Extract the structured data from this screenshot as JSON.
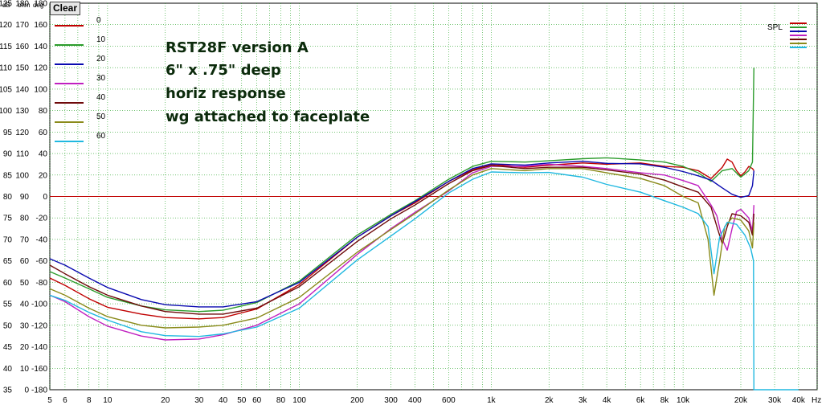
{
  "toolbar": {
    "clear_label": "Clear"
  },
  "axis_headers": {
    "db": "dB",
    "ohm": "ohm",
    "deg": "deg",
    "x_unit": "Hz",
    "spl": "SPL"
  },
  "annotation_lines": [
    "RST28F version A",
    "6\" x .75\" deep",
    "horiz response",
    "wg attached to faceplate"
  ],
  "colors": {
    "plot_bg": "#ffffff",
    "grid": "#20a020",
    "ref_line": "#c00000"
  },
  "chart_data": {
    "type": "line",
    "x_scale": "log",
    "xlim": [
      5,
      50000
    ],
    "ylim": [
      35,
      125
    ],
    "x_ticks": [
      5,
      6,
      8,
      10,
      20,
      30,
      40,
      50,
      60,
      80,
      100,
      200,
      300,
      400,
      600,
      1000,
      2000,
      3000,
      4000,
      6000,
      8000,
      10000,
      20000,
      30000,
      40000
    ],
    "x_tick_labels": [
      "5",
      "6",
      "8",
      "10",
      "20",
      "30",
      "40",
      "50",
      "60",
      "80",
      "100",
      "200",
      "300",
      "400",
      "600",
      "1k",
      "2k",
      "3k",
      "4k",
      "6k",
      "8k",
      "10k",
      "20k",
      "30k",
      "40k"
    ],
    "y_tick_db": [
      "125",
      "120",
      "115",
      "110",
      "105",
      "100",
      "95",
      "90",
      "85",
      "80",
      "75",
      "70",
      "65",
      "60",
      "55",
      "50",
      "45",
      "40",
      "35"
    ],
    "y_tick_ohm": [
      "180",
      "170",
      "160",
      "150",
      "140",
      "130",
      "120",
      "110",
      "100",
      "90",
      "80",
      "70",
      "60",
      "50",
      "40",
      "30",
      "20",
      "10",
      "0"
    ],
    "y_tick_deg": [
      "180",
      "160",
      "140",
      "120",
      "100",
      "80",
      "60",
      "40",
      "20",
      "0",
      "-20",
      "-40",
      "-60",
      "-80",
      "-100",
      "-120",
      "-140",
      "-160",
      "-180"
    ],
    "reference_line_db": 80,
    "grid": true,
    "legend_position": "top-left",
    "series": [
      {
        "name": "0",
        "color": "#c00000",
        "points": [
          [
            5,
            61
          ],
          [
            6,
            59.3
          ],
          [
            8,
            56.2
          ],
          [
            10,
            54.2
          ],
          [
            15,
            52.6
          ],
          [
            20,
            51.8
          ],
          [
            30,
            51.5
          ],
          [
            40,
            51.8
          ],
          [
            60,
            53.8
          ],
          [
            100,
            59.5
          ],
          [
            200,
            70.5
          ],
          [
            300,
            75.5
          ],
          [
            400,
            78.5
          ],
          [
            600,
            83.5
          ],
          [
            800,
            86.2
          ],
          [
            1000,
            87.5
          ],
          [
            1500,
            86.8
          ],
          [
            2000,
            87.3
          ],
          [
            3000,
            87.8
          ],
          [
            4000,
            87.5
          ],
          [
            6000,
            87.8
          ],
          [
            8000,
            87.0
          ],
          [
            10000,
            86.8
          ],
          [
            12000,
            86.0
          ],
          [
            14000,
            84.2
          ],
          [
            16000,
            86.8
          ],
          [
            17000,
            88.7
          ],
          [
            18000,
            88.0
          ],
          [
            19000,
            86.0
          ],
          [
            20000,
            84.8
          ],
          [
            21000,
            85.7
          ],
          [
            22000,
            87.0
          ],
          [
            23000,
            86.5
          ],
          [
            23400,
            86.0
          ]
        ]
      },
      {
        "name": "10",
        "color": "#2c9c2c",
        "points": [
          [
            5,
            62.5
          ],
          [
            6,
            61.0
          ],
          [
            8,
            58.5
          ],
          [
            10,
            56.5
          ],
          [
            15,
            54.5
          ],
          [
            20,
            53.6
          ],
          [
            30,
            53.2
          ],
          [
            40,
            53.5
          ],
          [
            60,
            55.3
          ],
          [
            100,
            60.3
          ],
          [
            200,
            71.0
          ],
          [
            300,
            75.8
          ],
          [
            400,
            79.0
          ],
          [
            600,
            84.0
          ],
          [
            800,
            87.0
          ],
          [
            1000,
            88.2
          ],
          [
            1500,
            88.0
          ],
          [
            2000,
            88.3
          ],
          [
            3000,
            88.8
          ],
          [
            4000,
            89.0
          ],
          [
            6000,
            88.5
          ],
          [
            8000,
            88.0
          ],
          [
            10000,
            87.0
          ],
          [
            12000,
            85.5
          ],
          [
            14000,
            83.5
          ],
          [
            16000,
            86.0
          ],
          [
            18000,
            86.5
          ],
          [
            20000,
            84.5
          ],
          [
            22000,
            86.0
          ],
          [
            23000,
            88.0
          ],
          [
            23400,
            110.0
          ]
        ]
      },
      {
        "name": "20",
        "color": "#0a0ab0",
        "points": [
          [
            5,
            65.5
          ],
          [
            6,
            64.0
          ],
          [
            8,
            61.0
          ],
          [
            10,
            58.8
          ],
          [
            15,
            56.0
          ],
          [
            20,
            54.8
          ],
          [
            30,
            54.3
          ],
          [
            40,
            54.3
          ],
          [
            60,
            55.5
          ],
          [
            100,
            60.0
          ],
          [
            200,
            70.5
          ],
          [
            300,
            75.5
          ],
          [
            400,
            78.8
          ],
          [
            600,
            83.5
          ],
          [
            800,
            86.5
          ],
          [
            1000,
            87.6
          ],
          [
            1500,
            87.3
          ],
          [
            2000,
            87.8
          ],
          [
            3000,
            88.2
          ],
          [
            4000,
            87.7
          ],
          [
            6000,
            87.6
          ],
          [
            8000,
            86.8
          ],
          [
            10000,
            85.8
          ],
          [
            12000,
            84.8
          ],
          [
            14000,
            83.8
          ],
          [
            16000,
            82.0
          ],
          [
            18000,
            80.5
          ],
          [
            20000,
            79.8
          ],
          [
            22000,
            80.2
          ],
          [
            23000,
            82.5
          ],
          [
            23400,
            86.0
          ]
        ]
      },
      {
        "name": "30",
        "color": "#c020c0",
        "points": [
          [
            5,
            57.0
          ],
          [
            6,
            55.5
          ],
          [
            8,
            52.0
          ],
          [
            10,
            49.8
          ],
          [
            15,
            47.5
          ],
          [
            20,
            46.6
          ],
          [
            30,
            46.8
          ],
          [
            40,
            47.8
          ],
          [
            60,
            50.0
          ],
          [
            100,
            55.0
          ],
          [
            200,
            66.5
          ],
          [
            300,
            72.5
          ],
          [
            400,
            76.3
          ],
          [
            600,
            81.3
          ],
          [
            800,
            85.5
          ],
          [
            1000,
            87.0
          ],
          [
            1500,
            87.0
          ],
          [
            2000,
            87.5
          ],
          [
            3000,
            87.0
          ],
          [
            4000,
            86.5
          ],
          [
            6000,
            85.5
          ],
          [
            8000,
            85.0
          ],
          [
            10000,
            83.7
          ],
          [
            12000,
            82.5
          ],
          [
            14000,
            78.0
          ],
          [
            15000,
            75.5
          ],
          [
            16000,
            70.0
          ],
          [
            17000,
            67.5
          ],
          [
            18000,
            72.5
          ],
          [
            19000,
            76.5
          ],
          [
            20000,
            77.0
          ],
          [
            22000,
            75.0
          ],
          [
            23000,
            72.0
          ],
          [
            23400,
            78.0
          ]
        ]
      },
      {
        "name": "40",
        "color": "#6e0a0a",
        "points": [
          [
            5,
            64.0
          ],
          [
            6,
            62.0
          ],
          [
            8,
            59.0
          ],
          [
            10,
            57.0
          ],
          [
            15,
            54.5
          ],
          [
            20,
            53.2
          ],
          [
            30,
            52.6
          ],
          [
            40,
            52.6
          ],
          [
            60,
            54.0
          ],
          [
            100,
            59.0
          ],
          [
            200,
            69.5
          ],
          [
            300,
            74.8
          ],
          [
            400,
            78.0
          ],
          [
            600,
            83.0
          ],
          [
            800,
            86.0
          ],
          [
            1000,
            87.2
          ],
          [
            1500,
            86.5
          ],
          [
            2000,
            86.8
          ],
          [
            3000,
            86.8
          ],
          [
            4000,
            86.2
          ],
          [
            6000,
            85.2
          ],
          [
            8000,
            83.8
          ],
          [
            10000,
            82.2
          ],
          [
            12000,
            81.0
          ],
          [
            14000,
            77.5
          ],
          [
            15000,
            73.0
          ],
          [
            16000,
            69.0
          ],
          [
            17000,
            73.0
          ],
          [
            18000,
            76.0
          ],
          [
            20000,
            75.5
          ],
          [
            22000,
            74.0
          ],
          [
            23000,
            71.0
          ],
          [
            23400,
            76.0
          ]
        ]
      },
      {
        "name": "50",
        "color": "#8a8a1a",
        "points": [
          [
            5,
            58.5
          ],
          [
            6,
            57.0
          ],
          [
            8,
            54.0
          ],
          [
            10,
            52.0
          ],
          [
            15,
            50.0
          ],
          [
            20,
            49.4
          ],
          [
            30,
            49.6
          ],
          [
            40,
            50.0
          ],
          [
            60,
            51.7
          ],
          [
            100,
            56.5
          ],
          [
            200,
            67.0
          ],
          [
            300,
            72.3
          ],
          [
            400,
            76.0
          ],
          [
            600,
            81.5
          ],
          [
            800,
            85.0
          ],
          [
            1000,
            86.5
          ],
          [
            1500,
            86.0
          ],
          [
            2000,
            86.5
          ],
          [
            3000,
            86.5
          ],
          [
            4000,
            85.5
          ],
          [
            6000,
            84.2
          ],
          [
            8000,
            82.5
          ],
          [
            10000,
            80.0
          ],
          [
            12000,
            78.5
          ],
          [
            13500,
            70.0
          ],
          [
            14500,
            57.0
          ],
          [
            15500,
            65.0
          ],
          [
            16500,
            73.0
          ],
          [
            18000,
            75.0
          ],
          [
            20000,
            74.5
          ],
          [
            22000,
            72.0
          ],
          [
            23000,
            68.0
          ],
          [
            23400,
            74.0
          ]
        ]
      },
      {
        "name": "60",
        "color": "#20b8e0",
        "points": [
          [
            5,
            57.0
          ],
          [
            6,
            55.8
          ],
          [
            8,
            53.0
          ],
          [
            10,
            51.2
          ],
          [
            15,
            48.5
          ],
          [
            20,
            47.6
          ],
          [
            30,
            47.4
          ],
          [
            40,
            48.0
          ],
          [
            60,
            49.6
          ],
          [
            100,
            54.0
          ],
          [
            200,
            65.2
          ],
          [
            300,
            70.8
          ],
          [
            400,
            74.8
          ],
          [
            600,
            80.8
          ],
          [
            800,
            84.0
          ],
          [
            1000,
            85.7
          ],
          [
            1500,
            85.5
          ],
          [
            2000,
            85.6
          ],
          [
            3000,
            84.5
          ],
          [
            4000,
            82.8
          ],
          [
            6000,
            81.0
          ],
          [
            8000,
            79.0
          ],
          [
            10000,
            77.5
          ],
          [
            12000,
            76.0
          ],
          [
            13500,
            73.0
          ],
          [
            14500,
            62.0
          ],
          [
            15500,
            70.5
          ],
          [
            17000,
            74.0
          ],
          [
            19000,
            73.5
          ],
          [
            21000,
            71.0
          ],
          [
            22500,
            68.0
          ],
          [
            23300,
            65.0
          ],
          [
            23400,
            35.0
          ],
          [
            40000,
            35.0
          ]
        ]
      }
    ]
  }
}
